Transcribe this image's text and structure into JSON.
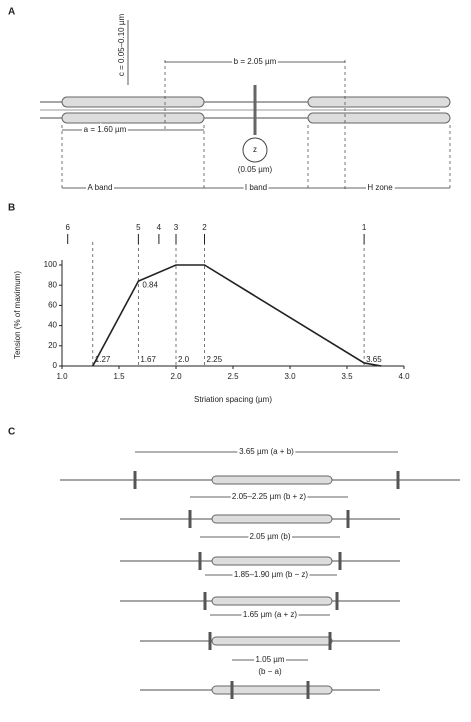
{
  "panel_a": {
    "label": "A",
    "b_length": "b = 2.05 µm",
    "a_length": "a = 1.60 µm",
    "c_length": "c = 0.05–0.10 µm",
    "z_label": "z",
    "z_length": "(0.05 µm)",
    "bands": [
      "A band",
      "I band",
      "H zone"
    ]
  },
  "chart_data": {
    "type": "line",
    "panel_label": "B",
    "x_label": "Striation spacing (µm)",
    "y_label": "Tension (% of maximum)",
    "x": [
      1.27,
      1.67,
      2.0,
      2.25,
      3.65,
      3.8
    ],
    "values": [
      0,
      84,
      100,
      100,
      3,
      0
    ],
    "value_labels": [
      null,
      "0.84",
      null,
      null,
      null,
      null
    ],
    "color": "#222222",
    "xlim": [
      1.0,
      4.0
    ],
    "xticks": [
      {
        "value": 1,
        "label": "1.0"
      },
      1.5,
      {
        "value": 2,
        "label": "2.0"
      },
      2.5,
      {
        "value": 3,
        "label": "3.0"
      },
      3.5,
      {
        "value": 4,
        "label": "4.0"
      }
    ],
    "ylim": [
      0,
      100
    ],
    "yticks": [
      0,
      20,
      40,
      60,
      80,
      100
    ],
    "dashed_lines": [
      {
        "value": 1.27,
        "label": "1.27"
      },
      {
        "value": 1.67,
        "label": "1.67"
      },
      {
        "value": 2.0,
        "label": "2.0"
      },
      {
        "value": 2.25,
        "label": "2.25"
      },
      {
        "value": 3.65,
        "label": "3.65"
      }
    ],
    "positions": [
      {
        "value": 1.05,
        "label": "6"
      },
      {
        "value": 1.67,
        "label": "5"
      },
      {
        "value": 1.85,
        "label": "4"
      },
      {
        "value": 2.0,
        "label": "3"
      },
      {
        "value": 2.25,
        "label": "2"
      },
      {
        "value": 3.65,
        "label": "1"
      }
    ]
  },
  "panel_c": {
    "label": "C",
    "rows": [
      "3.65 µm (a + b)",
      "2.05–2.25 µm (b + z)",
      "2.05 µm (b)",
      "1.85–1.90 µm (b − z)",
      "1.65 µm (a + z)",
      "1.05 µm",
      "(b − a)"
    ]
  }
}
